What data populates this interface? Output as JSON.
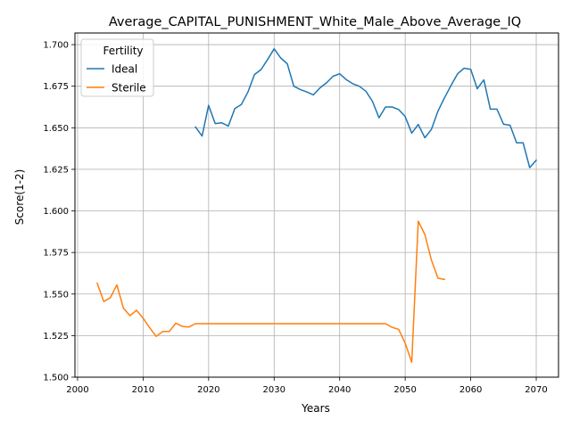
{
  "chart_data": {
    "type": "line",
    "title": "Average_CAPITAL_PUNISHMENT_White_Male_Above_Average_IQ",
    "xlabel": "Years",
    "ylabel": "Score(1-2)",
    "xlim": [
      1999.6,
      2073.4
    ],
    "ylim": [
      1.5,
      1.707
    ],
    "xticks": [
      2000,
      2010,
      2020,
      2030,
      2040,
      2050,
      2060,
      2070
    ],
    "yticks": [
      1.5,
      1.525,
      1.55,
      1.575,
      1.6,
      1.625,
      1.65,
      1.675,
      1.7
    ],
    "xtick_labels": [
      "2000",
      "2010",
      "2020",
      "2030",
      "2040",
      "2050",
      "2060",
      "2070"
    ],
    "ytick_labels": [
      "1.500",
      "1.525",
      "1.550",
      "1.575",
      "1.600",
      "1.625",
      "1.650",
      "1.675",
      "1.700"
    ],
    "grid": true,
    "legend": {
      "title": "Fertility",
      "position": "upper-left"
    },
    "series": [
      {
        "name": "Ideal",
        "color": "#1f77b4",
        "x": [
          2018,
          2019,
          2020,
          2021,
          2022,
          2023,
          2024,
          2025,
          2026,
          2027,
          2028,
          2029,
          2030,
          2031,
          2032,
          2033,
          2034,
          2035,
          2036,
          2037,
          2038,
          2039,
          2040,
          2041,
          2042,
          2043,
          2044,
          2045,
          2046,
          2047,
          2048,
          2049,
          2050,
          2051,
          2052,
          2053,
          2054,
          2055,
          2056,
          2057,
          2058,
          2059,
          2060,
          2061,
          2062,
          2063,
          2064,
          2065,
          2066,
          2067,
          2068,
          2069,
          2070
        ],
        "y": [
          1.6505,
          1.645,
          1.6635,
          1.6525,
          1.653,
          1.651,
          1.6615,
          1.664,
          1.6715,
          1.682,
          1.685,
          1.691,
          1.6975,
          1.692,
          1.6885,
          1.675,
          1.673,
          1.6715,
          1.6698,
          1.674,
          1.677,
          1.681,
          1.6825,
          1.679,
          1.6765,
          1.675,
          1.672,
          1.666,
          1.656,
          1.6625,
          1.6625,
          1.661,
          1.6568,
          1.6468,
          1.652,
          1.644,
          1.649,
          1.66,
          1.668,
          1.6755,
          1.6825,
          1.6858,
          1.6852,
          1.6735,
          1.6788,
          1.6612,
          1.6612,
          1.6522,
          1.6515,
          1.641,
          1.641,
          1.626,
          1.6305
        ]
      },
      {
        "name": "Sterile",
        "color": "#ff7f0e",
        "x": [
          2003,
          2004,
          2005,
          2006,
          2007,
          2008,
          2009,
          2010,
          2011,
          2012,
          2013,
          2014,
          2015,
          2016,
          2017,
          2018,
          2019,
          2020,
          2021,
          2022,
          2023,
          2024,
          2025,
          2026,
          2027,
          2028,
          2029,
          2030,
          2031,
          2032,
          2033,
          2034,
          2035,
          2036,
          2037,
          2038,
          2039,
          2040,
          2041,
          2042,
          2043,
          2044,
          2045,
          2046,
          2047,
          2048,
          2049,
          2050,
          2051,
          2052,
          2053,
          2054,
          2055,
          2056
        ],
        "y": [
          1.5565,
          1.5455,
          1.5478,
          1.5555,
          1.5415,
          1.537,
          1.5402,
          1.5355,
          1.5298,
          1.5245,
          1.5275,
          1.5275,
          1.5325,
          1.5305,
          1.5302,
          1.5322,
          1.5322,
          1.5322,
          1.5322,
          1.5322,
          1.5322,
          1.5322,
          1.5322,
          1.5322,
          1.5322,
          1.5322,
          1.5322,
          1.5322,
          1.5322,
          1.5322,
          1.5322,
          1.5322,
          1.5322,
          1.5322,
          1.5322,
          1.5322,
          1.5322,
          1.5322,
          1.5322,
          1.5322,
          1.5322,
          1.5322,
          1.5322,
          1.5322,
          1.5322,
          1.53,
          1.5288,
          1.5205,
          1.509,
          1.5938,
          1.5858,
          1.5705,
          1.5595,
          1.5588
        ]
      }
    ]
  }
}
